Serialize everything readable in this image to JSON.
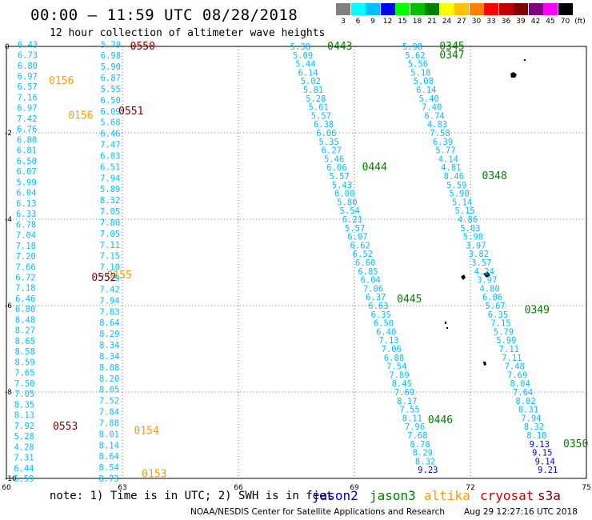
{
  "header": {
    "title": "00:00 – 11:59 UTC 08/28/2018",
    "subtitle": "12 hour collection of altimeter wave heights"
  },
  "color_scale": {
    "labels": [
      "3",
      "6",
      "9",
      "12",
      "15",
      "18",
      "21",
      "24",
      "27",
      "30",
      "33",
      "36",
      "39",
      "42",
      "45",
      "70",
      "(ft)"
    ],
    "colors": [
      "#808080",
      "#00ffff",
      "#00bfff",
      "#0000ff",
      "#00ff00",
      "#00c000",
      "#008000",
      "#ffff00",
      "#ffc000",
      "#ff8000",
      "#ff0000",
      "#c00000",
      "#800000",
      "#800080",
      "#ff00ff",
      "#000000"
    ]
  },
  "axes": {
    "x_ticks": [
      "60",
      "63",
      "66",
      "69",
      "72",
      "75"
    ],
    "y_ticks": [
      "0",
      "-2",
      "-4",
      "-6",
      "-8",
      "-10"
    ]
  },
  "footer": {
    "note": "note: 1) Time is in UTC; 2) SWH is in feet",
    "legend": [
      {
        "name": "jason2",
        "color": "#0000cc"
      },
      {
        "name": "jason3",
        "color": "#008000"
      },
      {
        "name": "altika",
        "color": "#ff9900"
      },
      {
        "name": "cryosat",
        "color": "#cc0000"
      },
      {
        "name": "s3a",
        "color": "#800000"
      }
    ],
    "credit": "NOAA/NESDIS Center for Satellite Applications and Research",
    "timestamp": "Aug 29 12:27:16 UTC 2018"
  },
  "chart_data": {
    "type": "scatter",
    "title": "12 hour collection of altimeter wave heights",
    "xlim": [
      60,
      75
    ],
    "ylim": [
      -10,
      0
    ],
    "units": "ft",
    "times": [
      {
        "label": "0550",
        "lon": 63.2,
        "lat": 0.0,
        "color": "#800000"
      },
      {
        "label": "0156",
        "lon": 61.1,
        "lat": -0.8,
        "color": "#ff9900"
      },
      {
        "label": "0156",
        "lon": 61.6,
        "lat": -1.6,
        "color": "#ff9900"
      },
      {
        "label": "0551",
        "lon": 62.9,
        "lat": -1.5,
        "color": "#800000"
      },
      {
        "label": "0155",
        "lon": 62.6,
        "lat": -5.3,
        "color": "#ff9900"
      },
      {
        "label": "0552",
        "lon": 62.2,
        "lat": -5.35,
        "color": "#800000"
      },
      {
        "label": "0553",
        "lon": 61.2,
        "lat": -8.8,
        "color": "#800000"
      },
      {
        "label": "0154",
        "lon": 63.3,
        "lat": -8.9,
        "color": "#ff9900"
      },
      {
        "label": "0153",
        "lon": 63.5,
        "lat": -9.9,
        "color": "#ff9900"
      },
      {
        "label": "0443",
        "lon": 68.3,
        "lat": 0.0,
        "color": "#008000"
      },
      {
        "label": "0444",
        "lon": 69.2,
        "lat": -2.8,
        "color": "#008000"
      },
      {
        "label": "0445",
        "lon": 70.1,
        "lat": -5.85,
        "color": "#008000"
      },
      {
        "label": "0446",
        "lon": 70.9,
        "lat": -8.65,
        "color": "#008000"
      },
      {
        "label": "0345",
        "lon": 71.2,
        "lat": 0.0,
        "color": "#008000"
      },
      {
        "label": "0347",
        "lon": 71.2,
        "lat": -0.2,
        "color": "#008000"
      },
      {
        "label": "0348",
        "lon": 72.3,
        "lat": -3.0,
        "color": "#008000"
      },
      {
        "label": "0349",
        "lon": 73.4,
        "lat": -6.1,
        "color": "#008000"
      },
      {
        "label": "0350",
        "lon": 74.4,
        "lat": -9.2,
        "color": "#008000"
      }
    ],
    "series": [
      {
        "track": "altika-left",
        "color": "#00bfff",
        "start": [
          60.55,
          0.05
        ],
        "end": [
          60.45,
          -10.0
        ],
        "values": [
          "6.43",
          "6.73",
          "6.80",
          "6.97",
          "6.57",
          "7.16",
          "6.97",
          "7.42",
          "6.76",
          "6.80",
          "6.81",
          "6.50",
          "6.07",
          "5.99",
          "6.04",
          "6.13",
          "6.33",
          "6.78",
          "7.04",
          "7.18",
          "7.20",
          "7.66",
          "6.72",
          "7.18",
          "6.46",
          "6.80",
          "8.48",
          "8.27",
          "8.65",
          "8.58",
          "8.59",
          "7.65",
          "7.50",
          "7.05",
          "8.35",
          "8.13",
          "7.92",
          "5.28",
          "4.28",
          "7.31",
          "6.44",
          "6.59"
        ]
      },
      {
        "track": "s3a-mid",
        "color": "#00bfff",
        "start": [
          62.7,
          0.05
        ],
        "end": [
          62.65,
          -10.0
        ],
        "values": [
          "5.79",
          "6.98",
          "5.90",
          "6.87",
          "5.55",
          "6.50",
          "6.09",
          "5.68",
          "6.46",
          "7.47",
          "6.83",
          "6.51",
          "7.94",
          "5.89",
          "8.32",
          "7.05",
          "7.80",
          "7.05",
          "7.11",
          "7.15",
          "7.10",
          "7.29",
          "7.42",
          "7.94",
          "7.83",
          "8.64",
          "8.29",
          "8.34",
          "8.34",
          "8.08",
          "8.20",
          "8.05",
          "7.52",
          "7.84",
          "7.88",
          "8.01",
          "8.14",
          "8.64",
          "8.54",
          "8.73"
        ]
      },
      {
        "track": "jason3-a",
        "color": "#00bfff",
        "start": [
          67.6,
          0.0
        ],
        "end": [
          70.9,
          -9.8
        ],
        "values": [
          "5.38",
          "5.09",
          "5.44",
          "6.14",
          "5.02",
          "5.81",
          "5.28",
          "5.61",
          "5.57",
          "6.38",
          "6.06",
          "5.35",
          "6.27",
          "5.46",
          "6.06",
          "5.57",
          "5.43",
          "6.00",
          "5.80",
          "5.54",
          "6.21",
          "5.57",
          "6.07",
          "6.62",
          "6.52",
          "6.60",
          "6.85",
          "6.04",
          "7.06",
          "6.37",
          "6.63",
          "6.35",
          "6.50",
          "6.40",
          "7.13",
          "7.06",
          "6.88",
          "7.54",
          "7.89",
          "8.45",
          "7.69",
          "8.17",
          "7.55",
          "8.11",
          "7.96",
          "7.68",
          "8.78",
          "8.29",
          "8.32",
          "9.23"
        ]
      },
      {
        "track": "jason3-b",
        "color": "#00bfff",
        "start": [
          70.5,
          0.0
        ],
        "end": [
          74.0,
          -9.8
        ],
        "values": [
          "5.98",
          "5.62",
          "5.56",
          "5.18",
          "5.08",
          "6.14",
          "5.40",
          "7.40",
          "6.74",
          "4.83",
          "7.58",
          "6.39",
          "5.77",
          "4.14",
          "4.81",
          "8.46",
          "5.59",
          "5.90",
          "5.14",
          "5.15",
          "4.86",
          "5.03",
          "5.98",
          "3.97",
          "3.82",
          "3.57",
          "4.24",
          "3.97",
          "4.80",
          "6.06",
          "5.67",
          "6.35",
          "7.15",
          "5.79",
          "5.99",
          "7.11",
          "7.11",
          "7.48",
          "7.69",
          "8.04",
          "7.64",
          "8.02",
          "8.31",
          "7.94",
          "8.32",
          "8.10",
          "9.13",
          "9.15",
          "9.14",
          "9.21"
        ]
      }
    ]
  }
}
